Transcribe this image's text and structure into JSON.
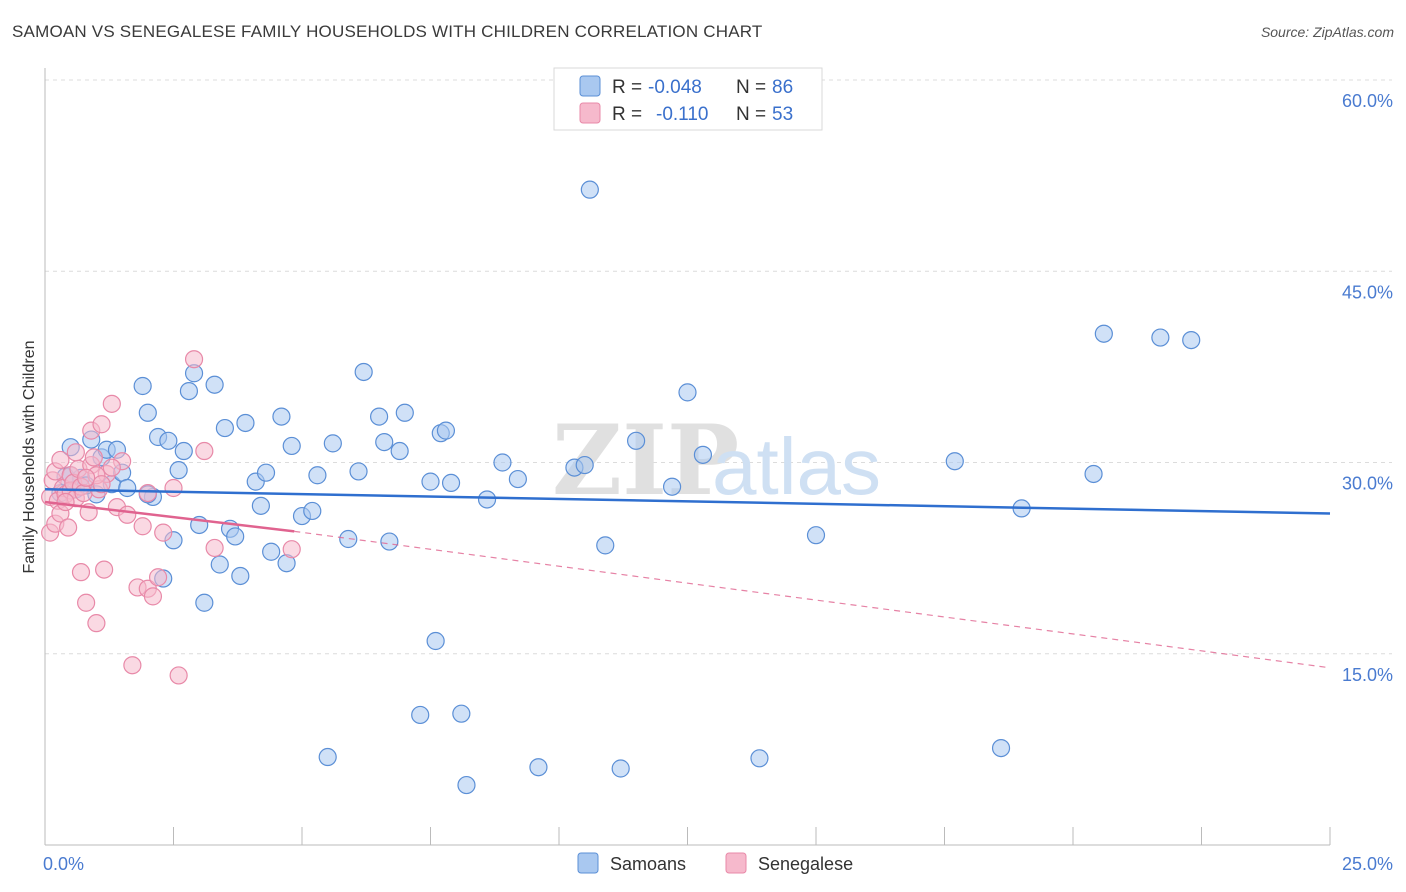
{
  "title": "SAMOAN VS SENEGALESE FAMILY HOUSEHOLDS WITH CHILDREN CORRELATION CHART",
  "source": "Source: ZipAtlas.com",
  "watermark": {
    "zip": "ZIP",
    "atlas": "atlas"
  },
  "colors": {
    "samoan_fill": "#a9c8f0",
    "samoan_stroke": "#5b8fd6",
    "samoan_line": "#2f6fcf",
    "senegalese_fill": "#f6b9cc",
    "senegalese_stroke": "#e889a8",
    "senegalese_line": "#e0638f",
    "grid": "#dcdcdc",
    "tick_text": "#4a7bd0"
  },
  "legend": {
    "rows": [
      {
        "r_label": "R =",
        "r_value": "-0.048",
        "n_label": "N =",
        "n_value": "86"
      },
      {
        "r_label": "R =",
        "r_value": "-0.110",
        "n_label": "N =",
        "n_value": "53"
      }
    ]
  },
  "bottom_legend": {
    "samoans": "Samoans",
    "senegalese": "Senegalese"
  },
  "chart_data": {
    "type": "scatter",
    "title": "SAMOAN VS SENEGALESE FAMILY HOUSEHOLDS WITH CHILDREN CORRELATION CHART",
    "xlabel": "",
    "ylabel": "Family Households with Children",
    "xlim": [
      0,
      25
    ],
    "ylim": [
      0,
      60
    ],
    "x_tick_labels": [
      "0.0%",
      "25.0%"
    ],
    "y_ticks": [
      15,
      30,
      45,
      60
    ],
    "y_tick_labels": [
      "15.0%",
      "30.0%",
      "45.0%",
      "60.0%"
    ],
    "grid": true,
    "legend_position": "top-center",
    "series": [
      {
        "name": "Samoans",
        "r": -0.048,
        "n": 86,
        "trend": {
          "x": [
            0,
            25
          ],
          "y": [
            27.9,
            26.0
          ],
          "dashed_extension": false
        },
        "points": [
          [
            0.3,
            27.6
          ],
          [
            0.4,
            28.9
          ],
          [
            0.5,
            31.2
          ],
          [
            0.6,
            27.9
          ],
          [
            0.7,
            28.8
          ],
          [
            0.9,
            31.8
          ],
          [
            1.0,
            27.5
          ],
          [
            1.1,
            30.4
          ],
          [
            1.2,
            31.0
          ],
          [
            1.3,
            28.3
          ],
          [
            1.5,
            29.2
          ],
          [
            1.6,
            28.0
          ],
          [
            1.9,
            36.0
          ],
          [
            2.0,
            33.9
          ],
          [
            2.1,
            27.3
          ],
          [
            2.2,
            32.0
          ],
          [
            2.3,
            20.9
          ],
          [
            2.4,
            31.7
          ],
          [
            2.5,
            23.9
          ],
          [
            2.6,
            29.4
          ],
          [
            2.7,
            30.9
          ],
          [
            2.8,
            35.6
          ],
          [
            2.9,
            37.0
          ],
          [
            3.0,
            25.1
          ],
          [
            3.1,
            19.0
          ],
          [
            3.3,
            36.1
          ],
          [
            3.4,
            22.0
          ],
          [
            3.5,
            32.7
          ],
          [
            3.6,
            24.8
          ],
          [
            3.7,
            24.2
          ],
          [
            3.8,
            21.1
          ],
          [
            3.9,
            33.1
          ],
          [
            4.1,
            28.5
          ],
          [
            4.2,
            26.6
          ],
          [
            4.3,
            29.2
          ],
          [
            4.4,
            23.0
          ],
          [
            4.6,
            33.6
          ],
          [
            4.7,
            22.1
          ],
          [
            4.8,
            31.3
          ],
          [
            5.0,
            25.8
          ],
          [
            5.2,
            26.2
          ],
          [
            5.3,
            29.0
          ],
          [
            5.5,
            6.9
          ],
          [
            5.6,
            31.5
          ],
          [
            5.9,
            24.0
          ],
          [
            6.1,
            29.3
          ],
          [
            6.2,
            37.1
          ],
          [
            6.5,
            33.6
          ],
          [
            6.6,
            31.6
          ],
          [
            6.7,
            23.8
          ],
          [
            6.9,
            30.9
          ],
          [
            7.0,
            33.9
          ],
          [
            7.3,
            10.2
          ],
          [
            7.5,
            28.5
          ],
          [
            7.6,
            16.0
          ],
          [
            7.7,
            32.3
          ],
          [
            7.8,
            32.5
          ],
          [
            7.9,
            28.4
          ],
          [
            8.1,
            10.3
          ],
          [
            8.2,
            4.7
          ],
          [
            8.6,
            27.1
          ],
          [
            8.9,
            30.0
          ],
          [
            9.2,
            28.7
          ],
          [
            9.6,
            6.1
          ],
          [
            10.3,
            29.6
          ],
          [
            10.5,
            29.8
          ],
          [
            10.6,
            51.4
          ],
          [
            10.9,
            23.5
          ],
          [
            11.2,
            6.0
          ],
          [
            12.2,
            28.1
          ],
          [
            12.5,
            35.5
          ],
          [
            12.8,
            30.6
          ],
          [
            13.9,
            6.8
          ],
          [
            15.0,
            24.3
          ],
          [
            17.7,
            30.1
          ],
          [
            18.6,
            7.6
          ],
          [
            19.0,
            26.4
          ],
          [
            20.4,
            29.1
          ],
          [
            20.6,
            40.1
          ],
          [
            21.7,
            39.8
          ],
          [
            22.3,
            39.6
          ],
          [
            11.5,
            31.7
          ],
          [
            1.4,
            31.0
          ],
          [
            2.0,
            27.5
          ],
          [
            0.5,
            29.0
          ],
          [
            0.8,
            28.2
          ]
        ]
      },
      {
        "name": "Senegalese",
        "r": -0.11,
        "n": 53,
        "trend": {
          "x": [
            0,
            4.85
          ],
          "y": [
            26.9,
            24.6
          ],
          "dashed_extension": true,
          "dashed_to": {
            "x": 25,
            "y": 13.9
          }
        },
        "points": [
          [
            0.1,
            24.5
          ],
          [
            0.1,
            27.3
          ],
          [
            0.15,
            28.6
          ],
          [
            0.2,
            25.2
          ],
          [
            0.2,
            29.3
          ],
          [
            0.25,
            27.0
          ],
          [
            0.3,
            26.0
          ],
          [
            0.3,
            30.2
          ],
          [
            0.35,
            28.0
          ],
          [
            0.4,
            27.5
          ],
          [
            0.45,
            24.9
          ],
          [
            0.5,
            29.0
          ],
          [
            0.5,
            27.8
          ],
          [
            0.55,
            28.4
          ],
          [
            0.6,
            27.2
          ],
          [
            0.65,
            29.5
          ],
          [
            0.7,
            21.4
          ],
          [
            0.7,
            28.1
          ],
          [
            0.75,
            27.6
          ],
          [
            0.8,
            19.0
          ],
          [
            0.85,
            26.1
          ],
          [
            0.9,
            29.8
          ],
          [
            0.9,
            32.5
          ],
          [
            0.95,
            30.4
          ],
          [
            1.0,
            17.4
          ],
          [
            1.05,
            27.9
          ],
          [
            1.1,
            33.0
          ],
          [
            1.15,
            21.6
          ],
          [
            1.2,
            29.1
          ],
          [
            1.3,
            34.6
          ],
          [
            1.4,
            26.5
          ],
          [
            1.5,
            30.1
          ],
          [
            1.6,
            25.9
          ],
          [
            1.7,
            14.1
          ],
          [
            1.8,
            20.2
          ],
          [
            1.9,
            25.0
          ],
          [
            2.0,
            27.6
          ],
          [
            2.0,
            20.1
          ],
          [
            2.1,
            19.5
          ],
          [
            2.2,
            21.0
          ],
          [
            2.3,
            24.5
          ],
          [
            2.5,
            28.0
          ],
          [
            2.6,
            13.3
          ],
          [
            2.9,
            38.1
          ],
          [
            3.1,
            30.9
          ],
          [
            3.3,
            23.3
          ],
          [
            4.8,
            23.2
          ],
          [
            1.0,
            29.0
          ],
          [
            0.6,
            30.8
          ],
          [
            1.3,
            29.6
          ],
          [
            0.4,
            26.9
          ],
          [
            0.8,
            28.8
          ],
          [
            1.1,
            28.3
          ]
        ]
      }
    ]
  }
}
